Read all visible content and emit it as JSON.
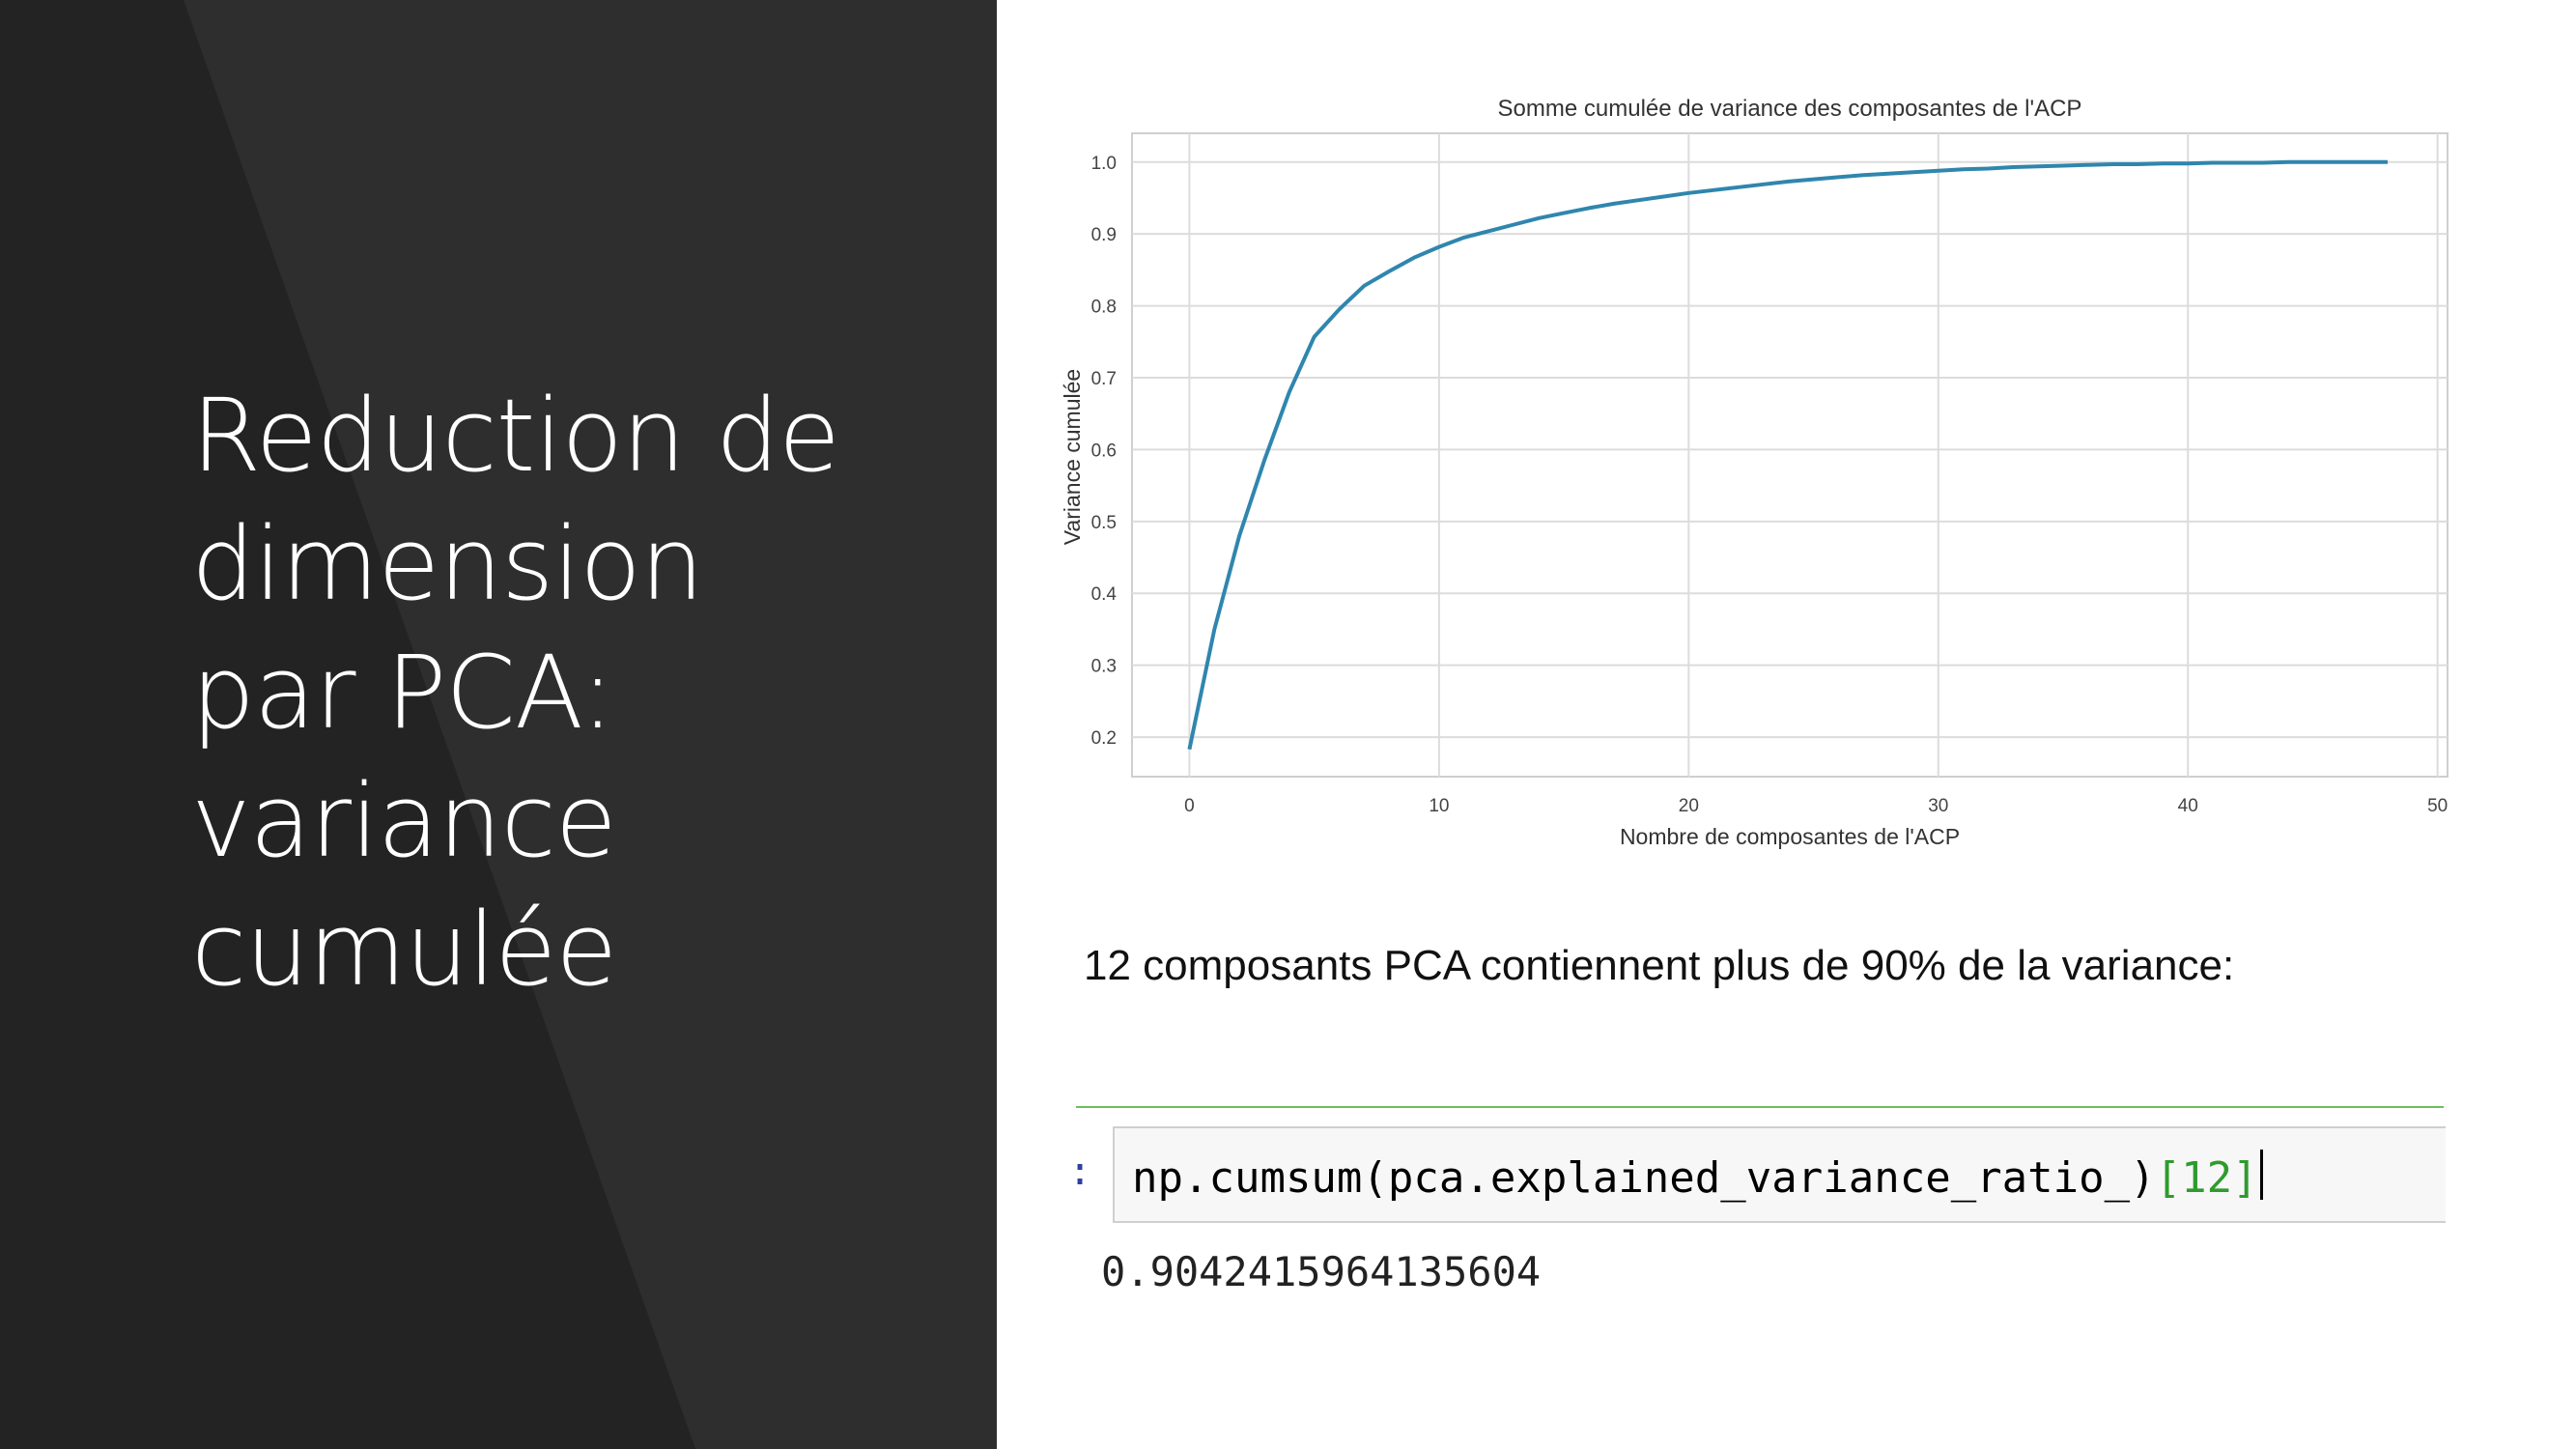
{
  "slide": {
    "title_lines": [
      "Reduction de",
      "dimension",
      "par PCA:",
      "variance",
      "cumulée"
    ],
    "caption": "12 composants PCA contiennent plus de 90% de la variance:"
  },
  "notebook": {
    "prompt": ":",
    "code_main": "np.cumsum(pca.explained_variance_ratio_)",
    "code_index": "[12]",
    "output": "0.9042415964135604"
  },
  "colors": {
    "left_bg": "#232323",
    "left_band": "#2e2e2e",
    "line": "#2f86ae",
    "grid": "#dcdcdc",
    "cell_divider": "#6cbf5c"
  },
  "chart_data": {
    "type": "line",
    "title": "Somme cumulée de variance des composantes de l'ACP",
    "xlabel": "Nombre de composantes de l'ACP",
    "ylabel": "Variance cumulée",
    "xlim": [
      -2.3,
      50.4
    ],
    "ylim": [
      0.145,
      1.04
    ],
    "xticks": [
      0,
      10,
      20,
      30,
      40,
      50
    ],
    "yticks": [
      0.2,
      0.3,
      0.4,
      0.5,
      0.6,
      0.7,
      0.8,
      0.9,
      1.0
    ],
    "ytick_labels": [
      "0.2",
      "0.3",
      "0.4",
      "0.5",
      "0.6",
      "0.7",
      "0.8",
      "0.9",
      "1.0"
    ],
    "grid": true,
    "x": [
      0,
      1,
      2,
      3,
      4,
      5,
      6,
      7,
      8,
      9,
      10,
      11,
      12,
      13,
      14,
      15,
      16,
      17,
      18,
      19,
      20,
      21,
      22,
      23,
      24,
      25,
      26,
      27,
      28,
      29,
      30,
      31,
      32,
      33,
      34,
      35,
      36,
      37,
      38,
      39,
      40,
      41,
      42,
      43,
      44,
      45,
      46,
      47,
      48
    ],
    "y": [
      0.183,
      0.35,
      0.48,
      0.585,
      0.68,
      0.757,
      0.795,
      0.828,
      0.848,
      0.867,
      0.882,
      0.895,
      0.904,
      0.913,
      0.922,
      0.929,
      0.936,
      0.942,
      0.947,
      0.952,
      0.957,
      0.961,
      0.965,
      0.969,
      0.973,
      0.976,
      0.979,
      0.982,
      0.984,
      0.986,
      0.988,
      0.99,
      0.991,
      0.993,
      0.994,
      0.995,
      0.996,
      0.997,
      0.997,
      0.998,
      0.998,
      0.999,
      0.999,
      0.999,
      1.0,
      1.0,
      1.0,
      1.0,
      1.0
    ]
  }
}
